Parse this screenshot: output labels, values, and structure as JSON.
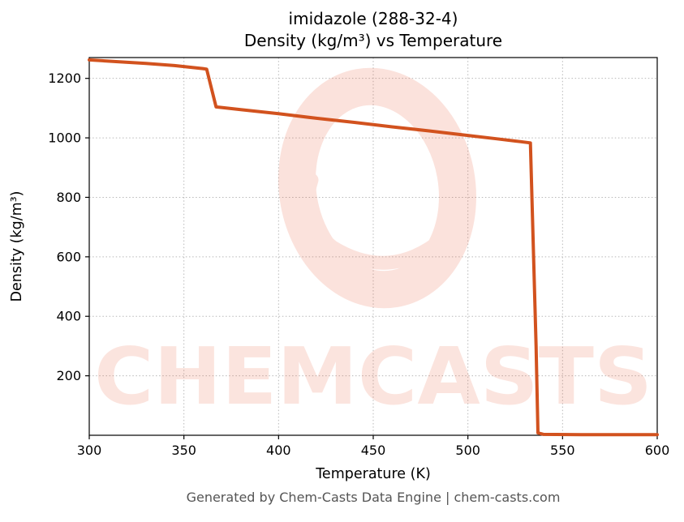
{
  "page": {
    "watermark_text": "CHEMCASTS",
    "watermark_color": "#e8502a",
    "footer": "Generated by Chem-Casts Data Engine | chem-casts.com",
    "footer_color": "#555555",
    "background_color": "#ffffff"
  },
  "chart_data": {
    "type": "line",
    "title_line1": "imidazole (288-32-4)",
    "title_line2": "Density (kg/m³) vs Temperature",
    "xlabel": "Temperature (K)",
    "ylabel": "Density (kg/m³)",
    "xlim": [
      300,
      600
    ],
    "ylim": [
      0,
      1270
    ],
    "xticks": [
      300,
      350,
      400,
      450,
      500,
      550,
      600
    ],
    "yticks": [
      200,
      400,
      600,
      800,
      1000,
      1200
    ],
    "grid": true,
    "grid_style": "dotted",
    "legend": "none",
    "line_color": "#d2521e",
    "line_width": 4,
    "series": [
      {
        "name": "Density",
        "points": [
          [
            300,
            1262
          ],
          [
            315,
            1256
          ],
          [
            330,
            1250
          ],
          [
            345,
            1243
          ],
          [
            360,
            1233
          ],
          [
            362,
            1231
          ],
          [
            367,
            1104
          ],
          [
            380,
            1095
          ],
          [
            400,
            1081
          ],
          [
            420,
            1066
          ],
          [
            440,
            1052
          ],
          [
            460,
            1037
          ],
          [
            480,
            1023
          ],
          [
            500,
            1008
          ],
          [
            515,
            997
          ],
          [
            528,
            987
          ],
          [
            533,
            983
          ],
          [
            536,
            300
          ],
          [
            537,
            8
          ],
          [
            540,
            3
          ],
          [
            560,
            2
          ],
          [
            580,
            2
          ],
          [
            600,
            2
          ]
        ],
        "annotations": {
          "melting_step_K": 364,
          "boiling_drop_K": 535
        }
      }
    ]
  }
}
